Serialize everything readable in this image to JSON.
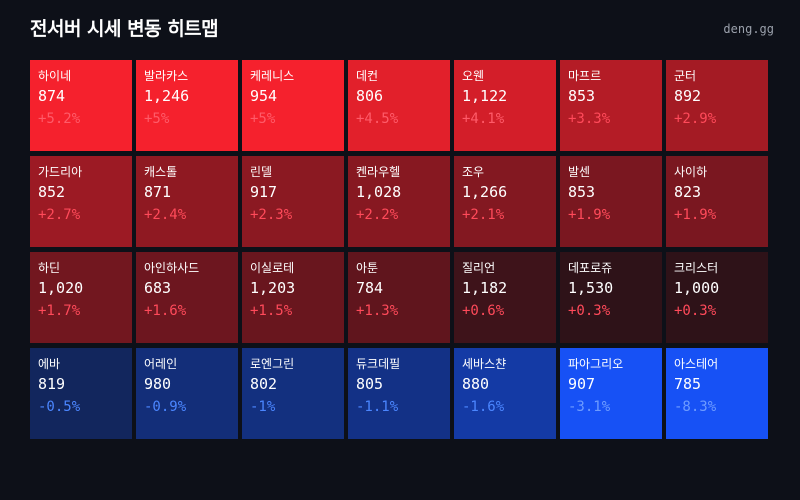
{
  "header": {
    "title": "전서버 시세 변동 히트맵",
    "site": "deng.gg"
  },
  "chart_data": {
    "type": "heatmap",
    "columns": 7,
    "cells": [
      {
        "name": "하이네",
        "price": "874",
        "change": "+5.2%",
        "pct": 5.2
      },
      {
        "name": "발라카스",
        "price": "1,246",
        "change": "+5%",
        "pct": 5.0
      },
      {
        "name": "케레니스",
        "price": "954",
        "change": "+5%",
        "pct": 5.0
      },
      {
        "name": "데컨",
        "price": "806",
        "change": "+4.5%",
        "pct": 4.5
      },
      {
        "name": "오웬",
        "price": "1,122",
        "change": "+4.1%",
        "pct": 4.1
      },
      {
        "name": "마프르",
        "price": "853",
        "change": "+3.3%",
        "pct": 3.3
      },
      {
        "name": "군터",
        "price": "892",
        "change": "+2.9%",
        "pct": 2.9
      },
      {
        "name": "가드리아",
        "price": "852",
        "change": "+2.7%",
        "pct": 2.7
      },
      {
        "name": "캐스톨",
        "price": "871",
        "change": "+2.4%",
        "pct": 2.4
      },
      {
        "name": "린델",
        "price": "917",
        "change": "+2.3%",
        "pct": 2.3
      },
      {
        "name": "켄라우헬",
        "price": "1,028",
        "change": "+2.2%",
        "pct": 2.2
      },
      {
        "name": "조우",
        "price": "1,266",
        "change": "+2.1%",
        "pct": 2.1
      },
      {
        "name": "발센",
        "price": "853",
        "change": "+1.9%",
        "pct": 1.9
      },
      {
        "name": "사이하",
        "price": "823",
        "change": "+1.9%",
        "pct": 1.9
      },
      {
        "name": "하딘",
        "price": "1,020",
        "change": "+1.7%",
        "pct": 1.7
      },
      {
        "name": "아인하사드",
        "price": "683",
        "change": "+1.6%",
        "pct": 1.6
      },
      {
        "name": "이실로테",
        "price": "1,203",
        "change": "+1.5%",
        "pct": 1.5
      },
      {
        "name": "아툰",
        "price": "784",
        "change": "+1.3%",
        "pct": 1.3
      },
      {
        "name": "질리언",
        "price": "1,182",
        "change": "+0.6%",
        "pct": 0.6
      },
      {
        "name": "데포로쥬",
        "price": "1,530",
        "change": "+0.3%",
        "pct": 0.3
      },
      {
        "name": "크리스터",
        "price": "1,000",
        "change": "+0.3%",
        "pct": 0.3
      },
      {
        "name": "에바",
        "price": "819",
        "change": "-0.5%",
        "pct": -0.5
      },
      {
        "name": "어레인",
        "price": "980",
        "change": "-0.9%",
        "pct": -0.9
      },
      {
        "name": "로엔그린",
        "price": "802",
        "change": "-1%",
        "pct": -1.0
      },
      {
        "name": "듀크데필",
        "price": "805",
        "change": "-1.1%",
        "pct": -1.1
      },
      {
        "name": "세바스챤",
        "price": "880",
        "change": "-1.6%",
        "pct": -1.6
      },
      {
        "name": "파아그리오",
        "price": "907",
        "change": "-3.1%",
        "pct": -3.1
      },
      {
        "name": "아스테어",
        "price": "785",
        "change": "-8.3%",
        "pct": -8.3
      }
    ]
  },
  "colors": {
    "background": "#0d1018",
    "up_strong": "#f5212d",
    "up_weak": "#1a1016",
    "down_weak": "#101a33",
    "down_strong": "#1751f5",
    "up_text": "#ff4a5a",
    "down_text": "#4b86ff"
  }
}
